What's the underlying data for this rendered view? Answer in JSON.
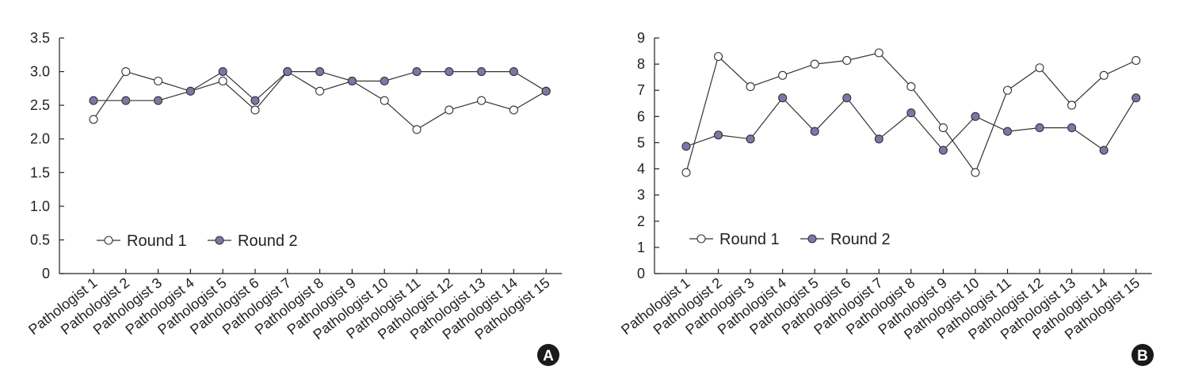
{
  "colors": {
    "axis": "#222222",
    "round1_fill": "#ffffff",
    "round2_fill": "#7b77a8",
    "line": "#333333",
    "badge": "#1a1a1a"
  },
  "chart_data": [
    {
      "type": "line",
      "panel_label": "A",
      "categories": [
        "Pathologist 1",
        "Pathologist 2",
        "Pathologist 3",
        "Pathologist 4",
        "Pathologist 5",
        "Pathologist 6",
        "Pathologist 7",
        "Pathologist 8",
        "Pathologist 9",
        "Pathologist 10",
        "Pathologist 11",
        "Pathologist 12",
        "Pathologist 13",
        "Pathologist 14",
        "Pathologist 15"
      ],
      "ylim": [
        0,
        3.5
      ],
      "yticks": [
        "0",
        "0.5",
        "1.0",
        "1.5",
        "2.0",
        "2.5",
        "3.0",
        "3.5"
      ],
      "legend": "bottom-left",
      "grid": false,
      "series": [
        {
          "name": "Round 1",
          "marker": "open-circle",
          "values": [
            2.29,
            3.0,
            2.86,
            2.71,
            2.86,
            2.43,
            3.0,
            2.71,
            2.86,
            2.57,
            2.14,
            2.43,
            2.57,
            2.43,
            2.71
          ]
        },
        {
          "name": "Round 2",
          "marker": "filled-circle",
          "values": [
            2.57,
            2.57,
            2.57,
            2.71,
            3.0,
            2.57,
            3.0,
            3.0,
            2.86,
            2.86,
            3.0,
            3.0,
            3.0,
            3.0,
            2.71
          ]
        }
      ]
    },
    {
      "type": "line",
      "panel_label": "B",
      "categories": [
        "Pathologist 1",
        "Pathologist 2",
        "Pathologist 3",
        "Pathologist 4",
        "Pathologist 5",
        "Pathologist 6",
        "Pathologist 7",
        "Pathologist 8",
        "Pathologist 9",
        "Pathologist 10",
        "Pathologist 11",
        "Pathologist 12",
        "Pathologist 13",
        "Pathologist 14",
        "Pathologist 15"
      ],
      "ylim": [
        0,
        9
      ],
      "yticks": [
        "0",
        "1",
        "2",
        "3",
        "4",
        "5",
        "6",
        "7",
        "8",
        "9"
      ],
      "legend": "bottom-left",
      "grid": false,
      "series": [
        {
          "name": "Round 1",
          "marker": "open-circle",
          "values": [
            3.86,
            8.29,
            7.14,
            7.57,
            8.0,
            8.14,
            8.43,
            7.14,
            5.57,
            3.86,
            7.0,
            7.86,
            6.43,
            7.57,
            8.14
          ]
        },
        {
          "name": "Round 2",
          "marker": "filled-circle",
          "values": [
            4.86,
            5.29,
            5.14,
            6.71,
            5.43,
            6.71,
            5.14,
            6.14,
            4.71,
            6.0,
            5.43,
            5.57,
            5.57,
            4.71,
            6.71
          ]
        }
      ]
    }
  ]
}
